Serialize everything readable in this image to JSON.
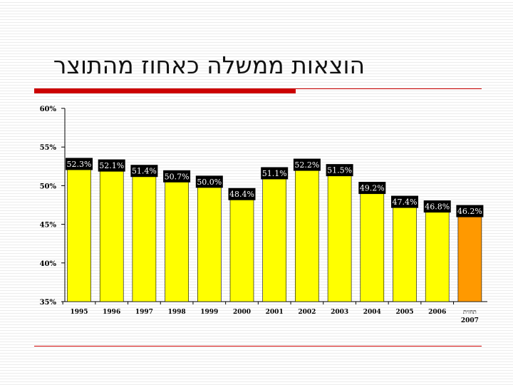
{
  "slide": {
    "title": "הוצאות ממשלה כאחוז מהתוצר"
  },
  "colors": {
    "bar_actual": "#ffff00",
    "bar_forecast": "#ff9900",
    "accent_rule": "#cc0000",
    "label_box": "#000000",
    "label_text": "#ffffff"
  },
  "chart_data": {
    "type": "bar",
    "categories": [
      "1995",
      "1996",
      "1997",
      "1998",
      "1999",
      "2000",
      "2001",
      "2002",
      "2003",
      "2004",
      "2005",
      "2006",
      "תחזית 2007"
    ],
    "values": [
      52.3,
      52.1,
      51.4,
      50.7,
      50.0,
      48.4,
      51.1,
      52.2,
      51.5,
      49.2,
      47.4,
      46.8,
      46.2
    ],
    "data_labels": [
      "52.3%",
      "52.1%",
      "51.4%",
      "50.7%",
      "50.0%",
      "48.4%",
      "51.1%",
      "52.2%",
      "51.5%",
      "49.2%",
      "47.4%",
      "46.8%",
      "46.2%"
    ],
    "highlight_index": 12,
    "ylim": [
      35,
      60
    ],
    "y_ticks": [
      {
        "value": 60,
        "label": "60%"
      },
      {
        "value": 55,
        "label": "55%"
      },
      {
        "value": 50,
        "label": "50%"
      },
      {
        "value": 45,
        "label": "45%"
      },
      {
        "value": 40,
        "label": "40%"
      },
      {
        "value": 35,
        "label": "35%"
      }
    ],
    "grid": false,
    "legend": "none",
    "title": "",
    "xlabel": "",
    "ylabel": ""
  }
}
